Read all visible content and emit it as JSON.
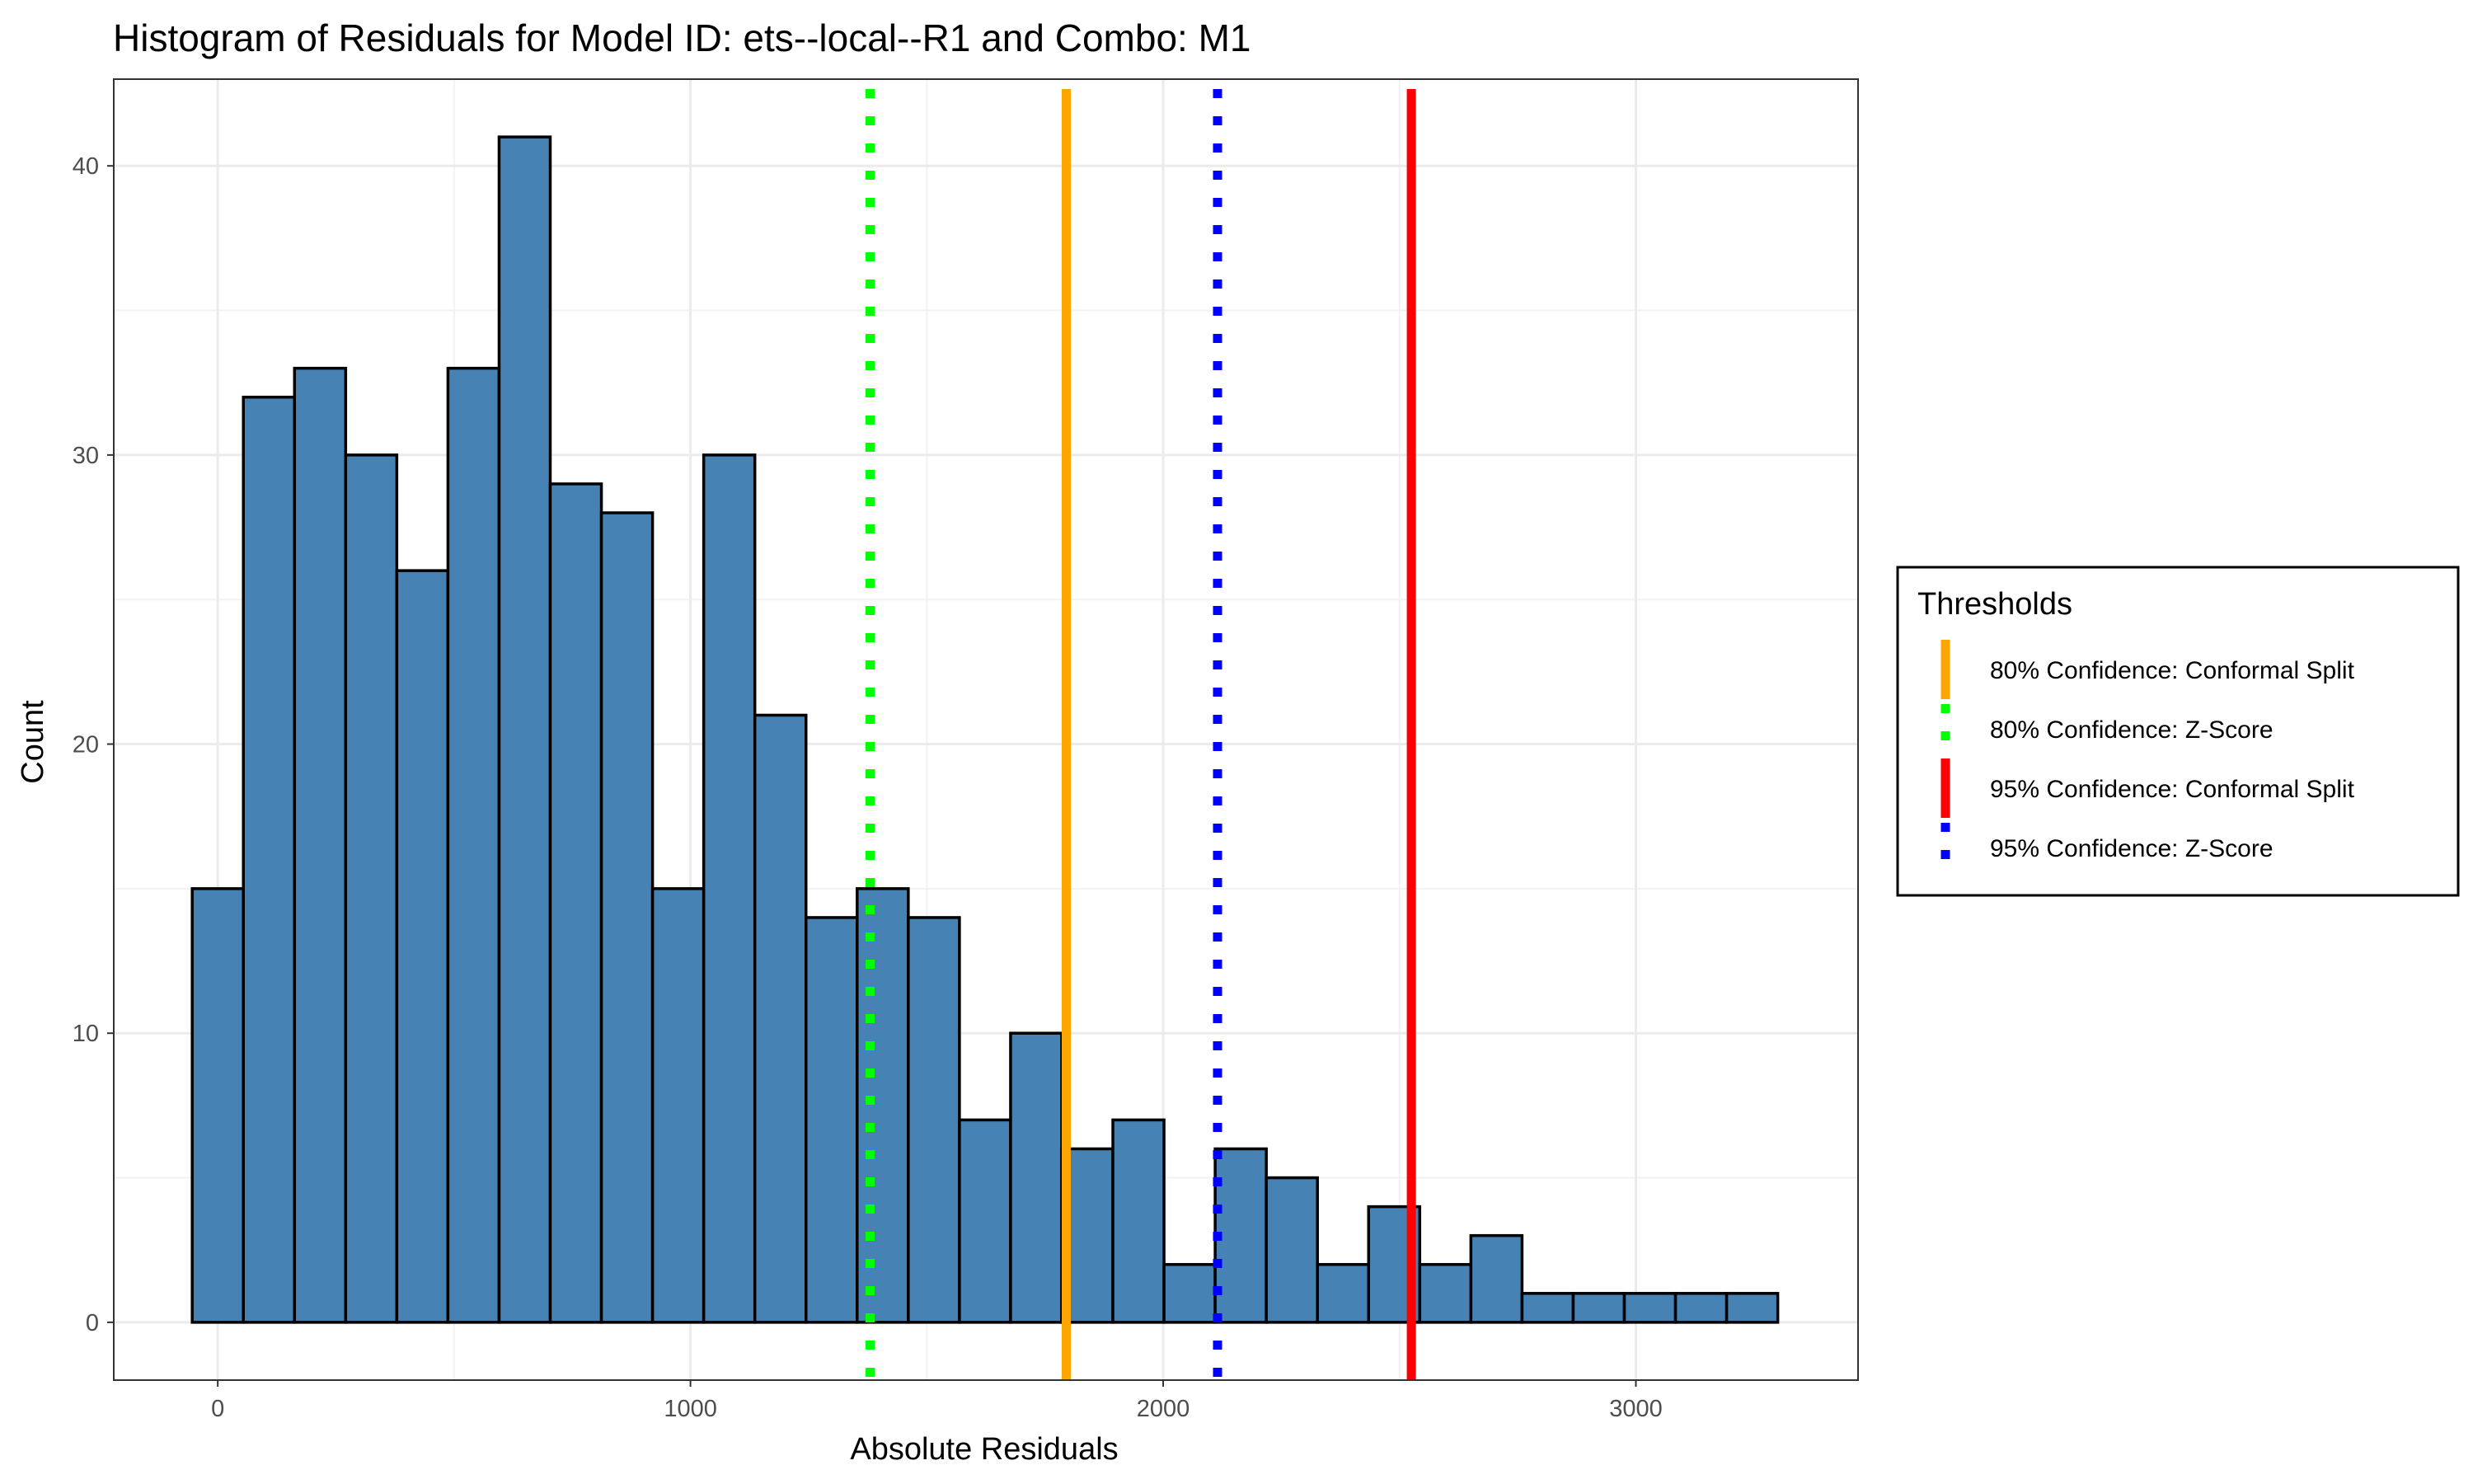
{
  "chart_data": {
    "type": "bar",
    "title": "Histogram of Residuals for Model ID: ets--local--R1 and Combo: M1",
    "xlabel": "Absolute Residuals",
    "ylabel": "Count",
    "xlim": [
      -220,
      3470
    ],
    "ylim": [
      -2,
      43
    ],
    "x_ticks": [
      "0",
      "1000",
      "2000",
      "3000"
    ],
    "y_ticks": [
      "0",
      "10",
      "20",
      "30",
      "40"
    ],
    "x_tick_values": [
      0,
      1000,
      2000,
      3000
    ],
    "y_tick_values": [
      0,
      10,
      20,
      30,
      40
    ],
    "bin_start": -54,
    "bin_width": 108.2,
    "counts": [
      15,
      32,
      33,
      30,
      26,
      33,
      41,
      29,
      28,
      15,
      30,
      21,
      14,
      15,
      14,
      7,
      10,
      6,
      7,
      2,
      6,
      5,
      2,
      4,
      2,
      3,
      1,
      1,
      1,
      1,
      1
    ],
    "bar_fill": "#4682B4",
    "bar_outline": "#000000",
    "grid": true,
    "thresholds": [
      {
        "label": "80% Confidence: Conformal Split",
        "x": 1795,
        "color": "#FFA500",
        "style": "solid"
      },
      {
        "label": "80% Confidence: Z-Score",
        "x": 1380,
        "color": "#00FF00",
        "style": "dotted"
      },
      {
        "label": "95% Confidence: Conformal Split",
        "x": 2525,
        "color": "#FF0000",
        "style": "solid"
      },
      {
        "label": "95% Confidence: Z-Score",
        "x": 2115,
        "color": "#0000FF",
        "style": "dotted"
      }
    ],
    "legend": {
      "title": "Thresholds",
      "position": "right"
    }
  }
}
